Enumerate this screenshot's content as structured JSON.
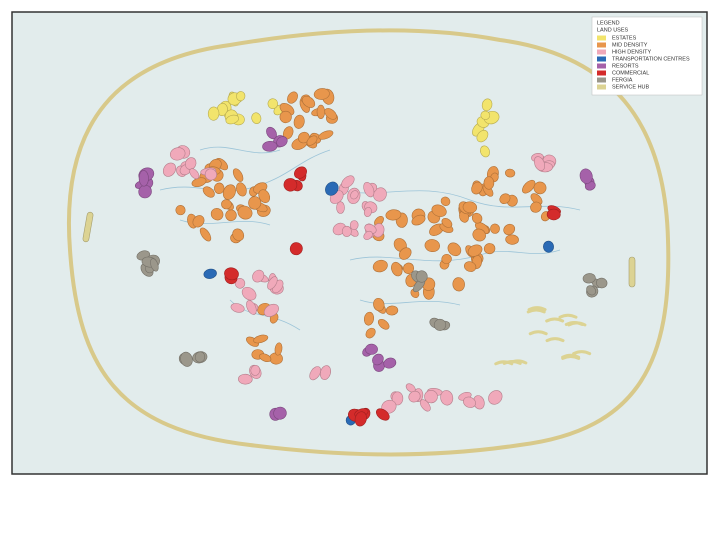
{
  "legend": {
    "title": "LEGEND",
    "subtitle": "LAND USES",
    "items": [
      {
        "label": "ESTATES",
        "color": "#f2e46c"
      },
      {
        "label": "MID DENSITY",
        "color": "#e8964c"
      },
      {
        "label": "HIGH DENSITY",
        "color": "#f0a9ba"
      },
      {
        "label": "TRANSPORTATION CENTRES",
        "color": "#2a6ab5"
      },
      {
        "label": "RESORTS",
        "color": "#a561a9"
      },
      {
        "label": "COMMERCIAL",
        "color": "#d42b2b"
      },
      {
        "label": "FERGIA",
        "color": "#9b978b"
      },
      {
        "label": "SERVICE HUB",
        "color": "#dcd393"
      }
    ]
  }
}
